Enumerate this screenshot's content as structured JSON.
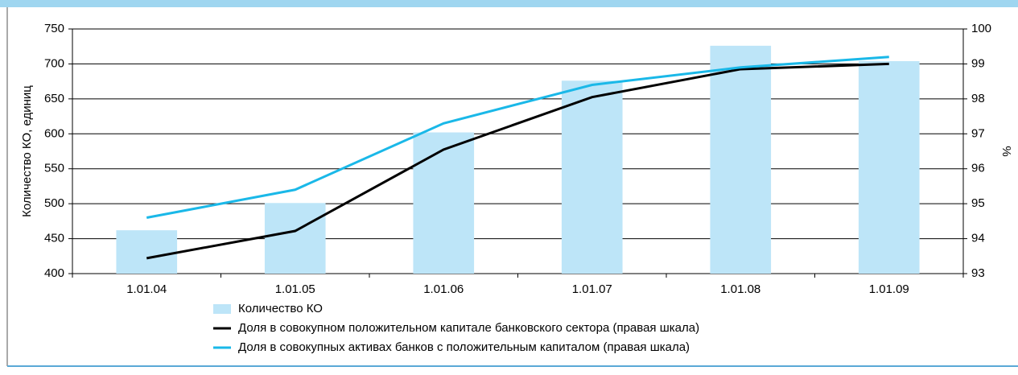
{
  "chart_data": {
    "type": "bar_line",
    "categories": [
      "1.01.04",
      "1.01.05",
      "1.01.06",
      "1.01.07",
      "1.01.08",
      "1.01.09"
    ],
    "ylabel": "Количество КО, единиц",
    "y2label": "%",
    "ylim": [
      400,
      750
    ],
    "yticks": [
      400,
      450,
      500,
      550,
      600,
      650,
      700,
      750
    ],
    "y2lim": [
      93,
      100
    ],
    "y2ticks": [
      93,
      94,
      95,
      96,
      97,
      98,
      99,
      100
    ],
    "grid": true,
    "series": [
      {
        "name": "Количество КО",
        "type": "bar",
        "color": "#bde5f8",
        "values": [
          462,
          501,
          602,
          676,
          726,
          704
        ]
      },
      {
        "name": "Доля в совокупном положительном капитале банковского сектора (правая шкала)",
        "type": "line",
        "axis": "y2",
        "color": "#000000",
        "values": [
          93.44,
          94.22,
          96.55,
          98.05,
          98.85,
          99.0
        ]
      },
      {
        "name": "Доля в совокупных активах банков с положительным капиталом (правая шкала)",
        "type": "line",
        "axis": "y2",
        "color": "#1ab8e8",
        "values": [
          94.6,
          95.4,
          97.3,
          98.4,
          98.9,
          99.2
        ]
      }
    ]
  }
}
